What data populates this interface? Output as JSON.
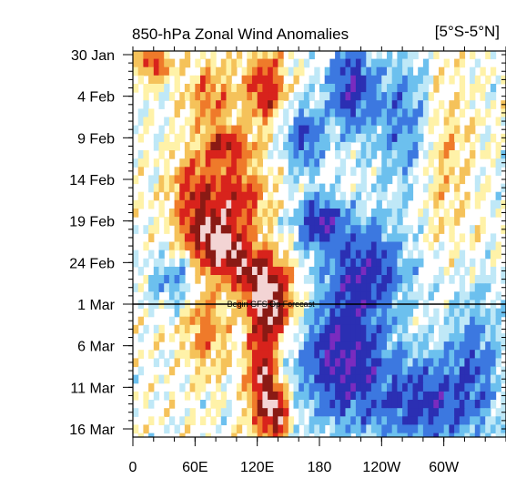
{
  "chart_data": {
    "type": "heatmap",
    "title": "850-hPa Zonal Wind Anomalies",
    "region_label": "[5°S-5°N]",
    "xlabel": "",
    "ylabel": "",
    "x_ticks": [
      "0",
      "60E",
      "120E",
      "180",
      "120W",
      "60W"
    ],
    "x_tick_degrees": [
      0,
      60,
      120,
      180,
      240,
      300
    ],
    "xlim": [
      0,
      360
    ],
    "y_ticks": [
      "30 Jan",
      "4 Feb",
      "9 Feb",
      "14 Feb",
      "19 Feb",
      "24 Feb",
      "1 Mar",
      "6 Mar",
      "11 Mar",
      "16 Mar"
    ],
    "y_tick_day_index": [
      0,
      5,
      10,
      15,
      20,
      25,
      30,
      35,
      40,
      45
    ],
    "ylim_days": [
      0,
      45
    ],
    "forecast_line": {
      "day_index": 30,
      "label": "Begin GFS Op Forecast"
    },
    "colors": {
      "strong_neg": "#2b2fb3",
      "mid_neg": "#3c78e0",
      "weak_neg": "#6cc0ee",
      "faint_neg": "#bfe8f7",
      "faint_pos": "#fff2a8",
      "weak_pos": "#f5c25a",
      "mid_pos": "#ef7a2a",
      "strong_pos": "#d8231c",
      "extreme_pos": "#8a1a14",
      "peak_pos": "#f3d4d4",
      "peak_neg": "#7a2bbf"
    },
    "anomaly_features": [
      {
        "sign": "positive",
        "lon_center": 20,
        "lon_width": 15,
        "day_center": 1,
        "day_width": 2,
        "magnitude": 0.7
      },
      {
        "sign": "positive",
        "lon_center": 75,
        "lon_width": 25,
        "day_center": 5,
        "day_width": 4,
        "magnitude": 0.5
      },
      {
        "sign": "positive",
        "lon_center": 128,
        "lon_width": 18,
        "day_center": 4,
        "day_width": 4,
        "magnitude": 0.85
      },
      {
        "sign": "positive",
        "lon_center": 92,
        "lon_width": 22,
        "day_center": 11,
        "day_width": 2,
        "magnitude": 0.8
      },
      {
        "sign": "positive",
        "lon_center": 58,
        "lon_width": 20,
        "day_center": 16,
        "day_width": 4,
        "magnitude": 0.65
      },
      {
        "sign": "positive",
        "lon_center": 100,
        "lon_width": 28,
        "day_center": 17,
        "day_width": 4,
        "magnitude": 0.75
      },
      {
        "sign": "positive",
        "lon_center": 70,
        "lon_width": 26,
        "day_center": 21,
        "day_width": 3,
        "magnitude": 0.7
      },
      {
        "sign": "positive",
        "lon_center": 90,
        "lon_width": 30,
        "day_center": 24,
        "day_width": 3,
        "magnitude": 0.9
      },
      {
        "sign": "positive",
        "lon_center": 125,
        "lon_width": 26,
        "day_center": 27,
        "day_width": 3,
        "magnitude": 0.95
      },
      {
        "sign": "positive",
        "lon_center": 135,
        "lon_width": 22,
        "day_center": 31,
        "day_width": 3,
        "magnitude": 0.9
      },
      {
        "sign": "positive",
        "lon_center": 70,
        "lon_width": 20,
        "day_center": 33,
        "day_width": 5,
        "magnitude": 0.5
      },
      {
        "sign": "positive",
        "lon_center": 125,
        "lon_width": 14,
        "day_center": 39,
        "day_width": 7,
        "magnitude": 1.0
      },
      {
        "sign": "positive",
        "lon_center": 140,
        "lon_width": 10,
        "day_center": 43,
        "day_width": 3,
        "magnitude": 1.0
      },
      {
        "sign": "positive",
        "lon_center": 300,
        "lon_width": 25,
        "day_center": 12,
        "day_width": 10,
        "magnitude": 0.3
      },
      {
        "sign": "negative",
        "lon_center": 210,
        "lon_width": 22,
        "day_center": 4,
        "day_width": 5,
        "magnitude": 0.9
      },
      {
        "sign": "negative",
        "lon_center": 165,
        "lon_width": 20,
        "day_center": 10,
        "day_width": 4,
        "magnitude": 0.7
      },
      {
        "sign": "negative",
        "lon_center": 180,
        "lon_width": 22,
        "day_center": 20,
        "day_width": 3,
        "magnitude": 0.9
      },
      {
        "sign": "negative",
        "lon_center": 225,
        "lon_width": 40,
        "day_center": 26,
        "day_width": 6,
        "magnitude": 0.85
      },
      {
        "sign": "negative",
        "lon_center": 200,
        "lon_width": 40,
        "day_center": 37,
        "day_width": 7,
        "magnitude": 1.0
      },
      {
        "sign": "negative",
        "lon_center": 280,
        "lon_width": 50,
        "day_center": 42,
        "day_width": 6,
        "magnitude": 0.8
      },
      {
        "sign": "negative",
        "lon_center": 260,
        "lon_width": 30,
        "day_center": 8,
        "day_width": 8,
        "magnitude": 0.55
      },
      {
        "sign": "negative",
        "lon_center": 330,
        "lon_width": 25,
        "day_center": 36,
        "day_width": 8,
        "magnitude": 0.5
      },
      {
        "sign": "negative",
        "lon_center": 40,
        "lon_width": 25,
        "day_center": 27,
        "day_width": 3,
        "magnitude": 0.45
      }
    ],
    "grid": false,
    "legend": "none"
  }
}
